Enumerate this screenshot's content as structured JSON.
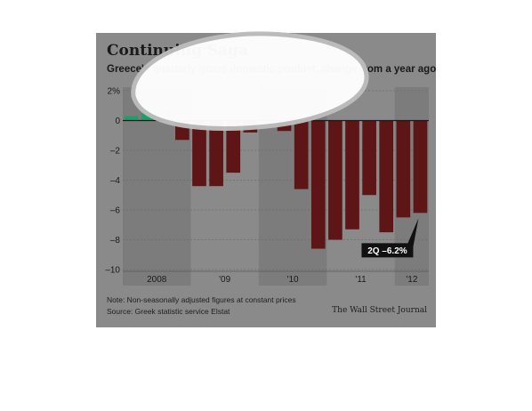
{
  "chart_data": {
    "type": "bar",
    "title": "Continuing Saga",
    "subtitle": "Greece's quarterly gross domestic product, change from a year ago",
    "xlabel": "",
    "ylabel": "",
    "ylim": [
      -10,
      2
    ],
    "y_ticks": [
      {
        "value": 2,
        "label": "2%"
      },
      {
        "value": 0,
        "label": "0"
      },
      {
        "value": -2,
        "label": "–2"
      },
      {
        "value": -4,
        "label": "–4"
      },
      {
        "value": -6,
        "label": "–6"
      },
      {
        "value": -8,
        "label": "–8"
      },
      {
        "value": -10,
        "label": "–10"
      }
    ],
    "year_labels": [
      "2008",
      "'09",
      "'10",
      "'11",
      "'12"
    ],
    "quarters": [
      "2008 Q1",
      "2008 Q2",
      "2008 Q3",
      "2008 Q4",
      "2009 Q1",
      "2009 Q2",
      "2009 Q3",
      "2009 Q4",
      "2010 Q1",
      "2010 Q2",
      "2010 Q3",
      "2010 Q4",
      "2011 Q1",
      "2011 Q2",
      "2011 Q3",
      "2011 Q4",
      "2012 Q1",
      "2012 Q2"
    ],
    "values": [
      0.3,
      0.5,
      0,
      -1.3,
      -4.4,
      -4.4,
      -3.5,
      -0.8,
      0.4,
      -0.7,
      -4.6,
      -8.6,
      -8.0,
      -7.3,
      -5.0,
      -7.5,
      -6.5,
      -6.2
    ],
    "value_label": "0",
    "value_label_index": 2,
    "callout": "2Q –6.2%",
    "callout_index": 17,
    "grid": true,
    "colors": {
      "positive": "#1f9e6a",
      "negative": "#5e1515",
      "background": "#8a8a8a",
      "shade": "#7c7c7c",
      "grid": "#6e6e6e",
      "zero_line": "#1a1a1a"
    }
  },
  "footer": {
    "note": "Note: Non-seasonally adjusted figures at constant prices",
    "source": "Source: Greek statistic service Elstat",
    "publisher": "The Wall Street Journal"
  }
}
